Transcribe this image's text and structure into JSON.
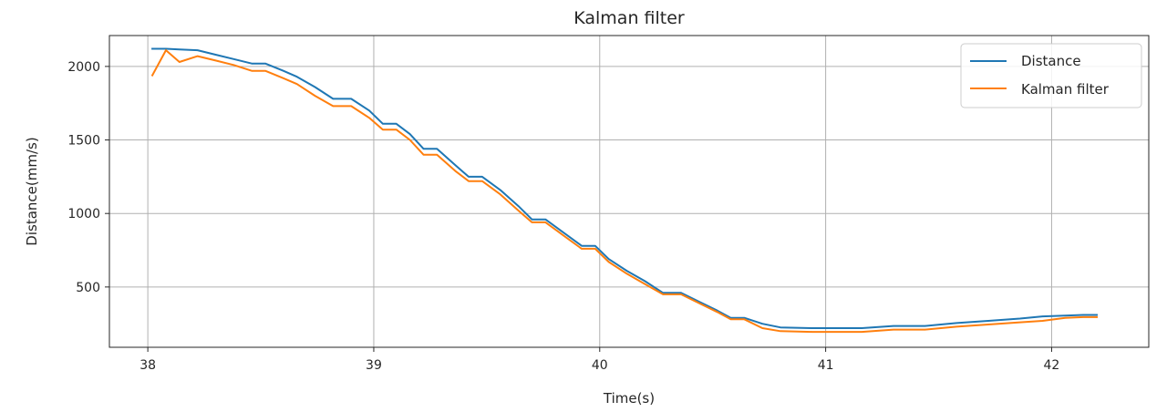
{
  "chart_data": {
    "type": "line",
    "title": "Kalman filter",
    "xlabel": "Time(s)",
    "ylabel": "Distance(mm/s)",
    "xlim": [
      37.83,
      42.43
    ],
    "ylim": [
      90,
      2210
    ],
    "xticks": [
      38,
      39,
      40,
      41,
      42
    ],
    "yticks": [
      500,
      1000,
      1500,
      2000
    ],
    "grid": true,
    "legend_position": "top-right",
    "series": [
      {
        "name": "Distance",
        "color": "#1f77b4",
        "x": [
          38.02,
          38.08,
          38.14,
          38.22,
          38.3,
          38.38,
          38.46,
          38.52,
          38.6,
          38.66,
          38.74,
          38.82,
          38.9,
          38.98,
          39.04,
          39.1,
          39.16,
          39.22,
          39.28,
          39.36,
          39.42,
          39.48,
          39.56,
          39.64,
          39.7,
          39.76,
          39.84,
          39.92,
          39.98,
          40.04,
          40.12,
          40.2,
          40.28,
          40.36,
          40.44,
          40.52,
          40.58,
          40.64,
          40.72,
          40.8,
          40.94,
          41.16,
          41.3,
          41.44,
          41.58,
          41.72,
          41.86,
          41.96,
          42.06,
          42.14,
          42.2
        ],
        "y": [
          2120,
          2120,
          2115,
          2110,
          2080,
          2050,
          2020,
          2020,
          1970,
          1930,
          1860,
          1780,
          1780,
          1700,
          1610,
          1610,
          1540,
          1440,
          1440,
          1330,
          1250,
          1250,
          1160,
          1050,
          960,
          960,
          870,
          780,
          780,
          690,
          610,
          540,
          460,
          460,
          400,
          340,
          290,
          290,
          250,
          225,
          220,
          220,
          235,
          235,
          255,
          270,
          285,
          300,
          305,
          310,
          310
        ]
      },
      {
        "name": "Kalman filter",
        "color": "#ff7f0e",
        "x": [
          38.02,
          38.08,
          38.14,
          38.22,
          38.3,
          38.38,
          38.46,
          38.52,
          38.6,
          38.66,
          38.74,
          38.82,
          38.9,
          38.98,
          39.04,
          39.1,
          39.16,
          39.22,
          39.28,
          39.36,
          39.42,
          39.48,
          39.56,
          39.64,
          39.7,
          39.76,
          39.84,
          39.92,
          39.98,
          40.04,
          40.12,
          40.2,
          40.28,
          40.36,
          40.44,
          40.52,
          40.58,
          40.64,
          40.72,
          40.8,
          40.94,
          41.16,
          41.3,
          41.44,
          41.58,
          41.72,
          41.86,
          41.96,
          42.06,
          42.14,
          42.2
        ],
        "y": [
          1940,
          2110,
          2030,
          2070,
          2040,
          2010,
          1970,
          1970,
          1920,
          1880,
          1800,
          1730,
          1730,
          1650,
          1570,
          1570,
          1500,
          1400,
          1400,
          1290,
          1220,
          1220,
          1130,
          1020,
          940,
          940,
          850,
          760,
          760,
          670,
          590,
          520,
          450,
          450,
          390,
          330,
          280,
          280,
          220,
          200,
          195,
          195,
          210,
          210,
          230,
          245,
          260,
          270,
          290,
          295,
          295
        ]
      }
    ]
  }
}
